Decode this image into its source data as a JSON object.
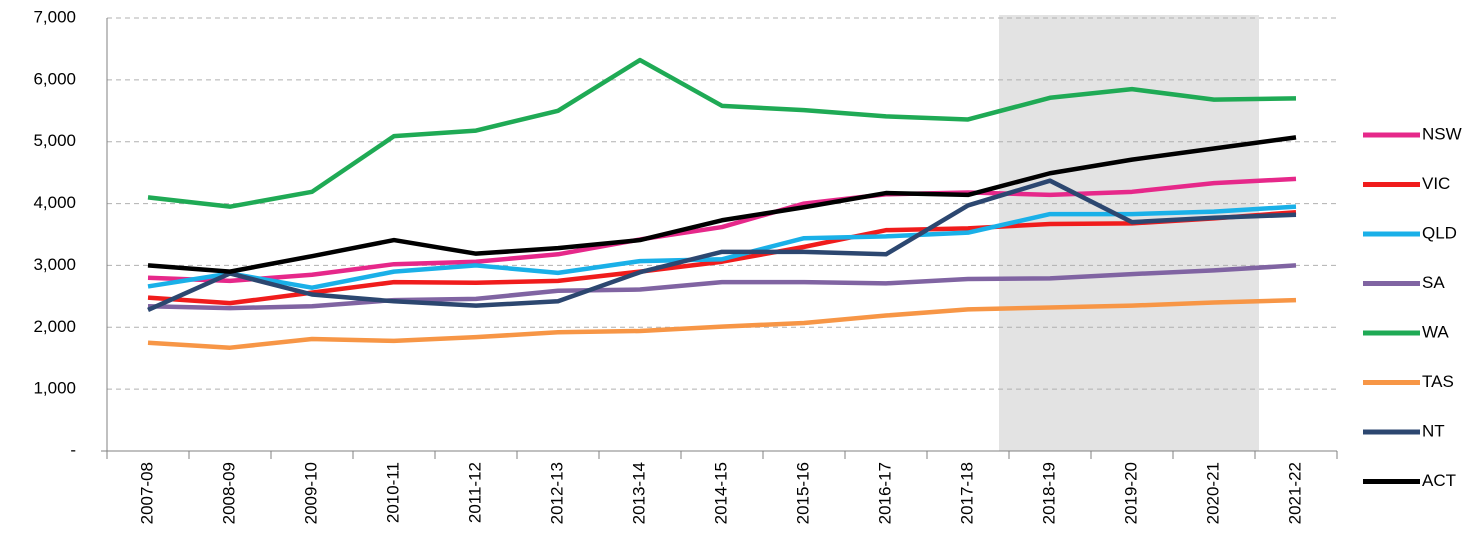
{
  "chart_data": {
    "type": "line",
    "categories": [
      "2007-08",
      "2008-09",
      "2009-10",
      "2010-11",
      "2011-12",
      "2012-13",
      "2013-14",
      "2014-15",
      "2015-16",
      "2016-17",
      "2017-18",
      "2018-19",
      "2019-20",
      "2020-21",
      "2021-22"
    ],
    "series": [
      {
        "name": "NSW",
        "color": "#e6288a",
        "values": [
          2800,
          2750,
          2850,
          3020,
          3060,
          3180,
          3420,
          3620,
          4000,
          4150,
          4180,
          4140,
          4190,
          4330,
          4400
        ]
      },
      {
        "name": "VIC",
        "color": "#f01c1c",
        "values": [
          2480,
          2390,
          2560,
          2730,
          2720,
          2750,
          2900,
          3060,
          3300,
          3570,
          3600,
          3670,
          3680,
          3760,
          3860
        ]
      },
      {
        "name": "QLD",
        "color": "#1ab0e8",
        "values": [
          2660,
          2870,
          2640,
          2900,
          3000,
          2880,
          3070,
          3100,
          3440,
          3470,
          3530,
          3830,
          3830,
          3870,
          3950
        ]
      },
      {
        "name": "SA",
        "color": "#8064a2",
        "values": [
          2340,
          2310,
          2340,
          2440,
          2460,
          2590,
          2610,
          2730,
          2730,
          2710,
          2780,
          2790,
          2860,
          2920,
          3000
        ]
      },
      {
        "name": "WA",
        "color": "#1faa55",
        "values": [
          4100,
          3950,
          4190,
          5090,
          5180,
          5500,
          6320,
          5580,
          5510,
          5410,
          5360,
          5710,
          5850,
          5680,
          5700
        ]
      },
      {
        "name": "TAS",
        "color": "#f79646",
        "values": [
          1750,
          1670,
          1810,
          1780,
          1840,
          1920,
          1940,
          2010,
          2070,
          2190,
          2290,
          2320,
          2350,
          2400,
          2440
        ]
      },
      {
        "name": "NT",
        "color": "#2c4770",
        "values": [
          2280,
          2870,
          2530,
          2420,
          2350,
          2420,
          2890,
          3220,
          3220,
          3180,
          3970,
          4370,
          3700,
          3770,
          3820
        ]
      },
      {
        "name": "ACT",
        "color": "#000000",
        "values": [
          3000,
          2900,
          3150,
          3410,
          3190,
          3280,
          3410,
          3730,
          3940,
          4170,
          4140,
          4490,
          4710,
          4890,
          5070
        ]
      }
    ],
    "ylim": [
      0,
      7000
    ],
    "yticks": [
      {
        "value": 0,
        "label": "-"
      },
      {
        "value": 1000,
        "label": "1,000"
      },
      {
        "value": 2000,
        "label": "2,000"
      },
      {
        "value": 3000,
        "label": "3,000"
      },
      {
        "value": 4000,
        "label": "4,000"
      },
      {
        "value": 5000,
        "label": "5,000"
      },
      {
        "value": 6000,
        "label": "6,000"
      },
      {
        "value": 7000,
        "label": "7,000"
      }
    ],
    "grid": true,
    "legend": "right"
  }
}
